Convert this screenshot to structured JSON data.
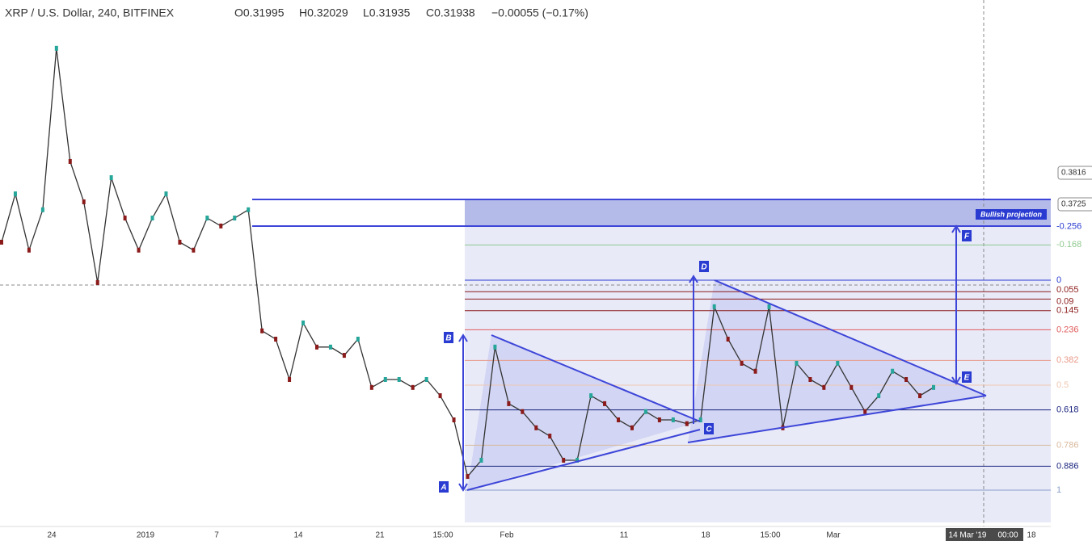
{
  "header": {
    "symbol": "XRP / U.S. Dollar, 240, BITFINEX",
    "open": "O0.31995",
    "high": "H0.32029",
    "low": "L0.31935",
    "close": "C0.31938",
    "change": "−0.00055 (−0.17%)"
  },
  "chart_data": {
    "type": "line",
    "color": "#333333",
    "ylim": [
      0.2784,
      0.4317
    ],
    "values": [
      0.3615,
      0.3755,
      0.3592,
      0.3709,
      0.4177,
      0.3849,
      0.3732,
      0.3498,
      0.3802,
      0.3685,
      0.3592,
      0.3685,
      0.3755,
      0.3615,
      0.3592,
      0.3685,
      0.3662,
      0.3685,
      0.3709,
      0.3358,
      0.3334,
      0.3217,
      0.3381,
      0.3311,
      0.3311,
      0.3287,
      0.3334,
      0.3194,
      0.3217,
      0.3217,
      0.3194,
      0.3217,
      0.317,
      0.31,
      0.2936,
      0.2983,
      0.3311,
      0.3147,
      0.3124,
      0.3077,
      0.3053,
      0.2983,
      0.2983,
      0.317,
      0.3147,
      0.31,
      0.3077,
      0.3124,
      0.31,
      0.31,
      0.3089,
      0.31,
      0.3428,
      0.3334,
      0.3264,
      0.3241,
      0.3428,
      0.3077,
      0.3264,
      0.3217,
      0.3194,
      0.3264,
      0.3194,
      0.3124,
      0.317,
      0.3241,
      0.3217,
      0.317,
      0.3194
    ]
  },
  "price_tags": [
    0.3816,
    0.3725
  ],
  "fibonacci": {
    "levels": [
      -0.256,
      -0.168,
      0,
      0.055,
      0.09,
      0.145,
      0.236,
      0.382,
      0.5,
      0.618,
      0.786,
      0.886,
      1
    ],
    "colors": [
      "#2a3bd1",
      "#8fc98f",
      "#2a3bd1",
      "#8b1a1a",
      "#8b1a1a",
      "#8b1a1a",
      "#e05a5a",
      "#e99a8a",
      "#f0c8b0",
      "#1a237e",
      "#d9b99b",
      "#1a237e",
      "#8aa0c8"
    ]
  },
  "points": [
    "A",
    "B",
    "C",
    "D",
    "E",
    "F"
  ],
  "annotation": "Bullish projection",
  "x_labels": [
    "24",
    "2019",
    "7",
    "14",
    "21",
    "15:00",
    "Feb",
    "11",
    "18",
    "15:00",
    "Mar",
    "14 Mar '19",
    "00:00",
    "18"
  ]
}
